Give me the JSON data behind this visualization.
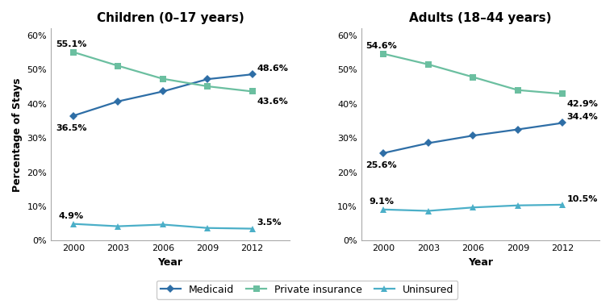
{
  "years": [
    2000,
    2003,
    2006,
    2009,
    2012
  ],
  "children": {
    "title": "Children (0–17 years)",
    "medicaid": [
      36.5,
      40.7,
      43.6,
      47.2,
      48.6
    ],
    "private_insurance": [
      55.1,
      51.1,
      47.3,
      45.1,
      43.6
    ],
    "uninsured": [
      4.9,
      4.2,
      4.7,
      3.7,
      3.5
    ],
    "annotations": {
      "medicaid_start": "36.5%",
      "medicaid_end": "48.6%",
      "private_start": "55.1%",
      "private_end": "43.6%",
      "uninsured_start": "4.9%",
      "uninsured_end": "3.5%"
    }
  },
  "adults": {
    "title": "Adults (18–44 years)",
    "medicaid": [
      25.6,
      28.5,
      30.7,
      32.5,
      34.4
    ],
    "private_insurance": [
      54.6,
      51.5,
      47.8,
      44.0,
      42.9
    ],
    "uninsured": [
      9.1,
      8.7,
      9.7,
      10.3,
      10.5
    ],
    "annotations": {
      "medicaid_start": "25.6%",
      "medicaid_end": "34.4%",
      "private_start": "54.6%",
      "private_end": "42.9%",
      "uninsured_start": "9.1%",
      "uninsured_end": "10.5%"
    }
  },
  "colors": {
    "medicaid": "#2E6EA6",
    "private_insurance": "#6BBFA0",
    "uninsured": "#4BAFC8"
  },
  "markers": {
    "medicaid": "D",
    "private_insurance": "s",
    "uninsured": "^"
  },
  "ylabel": "Percentage of Stays",
  "xlabel": "Year",
  "ylim": [
    0,
    62
  ],
  "yticks": [
    0,
    10,
    20,
    30,
    40,
    50,
    60
  ],
  "legend_labels": [
    "Medicaid",
    "Private insurance",
    "Uninsured"
  ],
  "title_fontsize": 11,
  "label_fontsize": 9,
  "annot_fontsize": 8,
  "tick_fontsize": 8,
  "background_color": "#ffffff"
}
